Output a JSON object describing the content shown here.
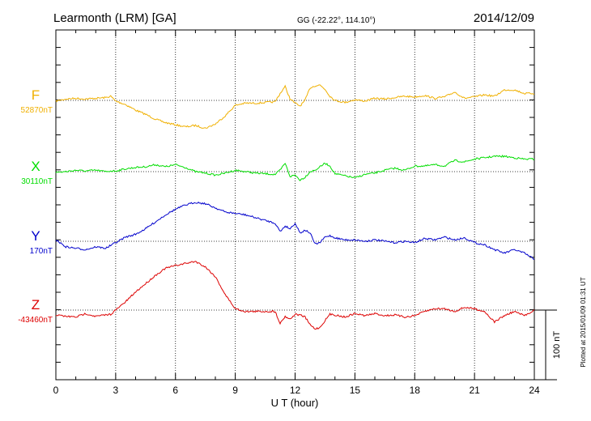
{
  "header": {
    "station": "Learmonth (LRM)  [GA]",
    "coords": "GG (-22.22°, 114.10°)",
    "date": "2014/12/09"
  },
  "side_note": "Plotted at 2015/01/09 01:31  UT",
  "scale_bar": {
    "label": "100 nT",
    "value": 100
  },
  "chart_data": {
    "type": "line",
    "title": "Learmonth (LRM)  [GA]",
    "xlabel": "U T (hour)",
    "ylabel": "",
    "xlim": [
      0,
      24
    ],
    "x_ticks": [
      "0",
      "3",
      "6",
      "9",
      "12",
      "15",
      "18",
      "21",
      "24"
    ],
    "tick_values": [
      0,
      3,
      6,
      9,
      12,
      15,
      18,
      21,
      24
    ],
    "grid": true,
    "x": [
      0,
      0.5,
      1,
      1.5,
      2,
      2.5,
      2.75,
      3,
      3.5,
      4,
      4.5,
      5,
      5.5,
      6,
      6.5,
      7,
      7.5,
      8,
      8.5,
      9,
      9.5,
      10,
      10.5,
      11,
      11.25,
      11.5,
      11.75,
      12,
      12.25,
      12.5,
      12.75,
      13,
      13.25,
      13.5,
      13.75,
      14,
      14.5,
      15,
      15.5,
      16,
      16.5,
      17,
      17.5,
      18,
      18.5,
      19,
      19.5,
      20,
      20.5,
      21,
      21.5,
      22,
      22.5,
      23,
      23.5,
      24
    ],
    "series": [
      {
        "name": "F",
        "baseline_label": "52870nT",
        "baseline": 52870,
        "color": "#f0b000",
        "values": [
          52869,
          52872,
          52873,
          52872,
          52873,
          52874,
          52876,
          52869,
          52864,
          52856,
          52850,
          52843,
          52838,
          52835,
          52832,
          52834,
          52830,
          52836,
          52848,
          52863,
          52866,
          52866,
          52867,
          52868,
          52880,
          52890,
          52872,
          52866,
          52862,
          52870,
          52888,
          52891,
          52892,
          52886,
          52876,
          52870,
          52867,
          52871,
          52869,
          52873,
          52872,
          52874,
          52876,
          52875,
          52877,
          52873,
          52875,
          52882,
          52873,
          52875,
          52878,
          52876,
          52885,
          52885,
          52880,
          52880
        ]
      },
      {
        "name": "X",
        "baseline_label": "30110nT",
        "baseline": 30110,
        "color": "#00dd00",
        "values": [
          30109,
          30110,
          30112,
          30111,
          30112,
          30110,
          30111,
          30111,
          30114,
          30116,
          30117,
          30120,
          30117,
          30120,
          30116,
          30110,
          30108,
          30105,
          30108,
          30112,
          30110,
          30108,
          30107,
          30106,
          30112,
          30122,
          30103,
          30105,
          30098,
          30102,
          30110,
          30112,
          30117,
          30122,
          30118,
          30107,
          30104,
          30101,
          30106,
          30108,
          30112,
          30115,
          30112,
          30118,
          30118,
          30120,
          30118,
          30126,
          30124,
          30128,
          30130,
          30132,
          30132,
          30130,
          30128,
          30128
        ]
      },
      {
        "name": "Y",
        "baseline_label": "170nT",
        "baseline": 170,
        "color": "#0000cc",
        "values": [
          172,
          162,
          160,
          158,
          162,
          160,
          164,
          168,
          176,
          180,
          188,
          198,
          208,
          216,
          222,
          226,
          224,
          218,
          212,
          210,
          208,
          204,
          200,
          196,
          184,
          192,
          188,
          196,
          182,
          186,
          182,
          166,
          168,
          176,
          178,
          175,
          172,
          172,
          170,
          172,
          170,
          168,
          170,
          168,
          174,
          172,
          176,
          172,
          175,
          168,
          165,
          158,
          153,
          158,
          153,
          144
        ]
      },
      {
        "name": "Z",
        "baseline_label": "-43460nT",
        "baseline": -43460,
        "color": "#dd0000",
        "values": [
          -43467,
          -43469,
          -43470,
          -43465,
          -43469,
          -43467,
          -43466,
          -43460,
          -43448,
          -43434,
          -43422,
          -43410,
          -43400,
          -43396,
          -43393,
          -43390,
          -43398,
          -43412,
          -43438,
          -43458,
          -43462,
          -43462,
          -43462,
          -43462,
          -43479,
          -43469,
          -43473,
          -43466,
          -43467,
          -43470,
          -43481,
          -43487,
          -43485,
          -43475,
          -43466,
          -43467,
          -43470,
          -43465,
          -43468,
          -43465,
          -43468,
          -43467,
          -43470,
          -43468,
          -43462,
          -43458,
          -43458,
          -43462,
          -43456,
          -43458,
          -43462,
          -43477,
          -43468,
          -43462,
          -43468,
          -43460
        ]
      }
    ]
  }
}
